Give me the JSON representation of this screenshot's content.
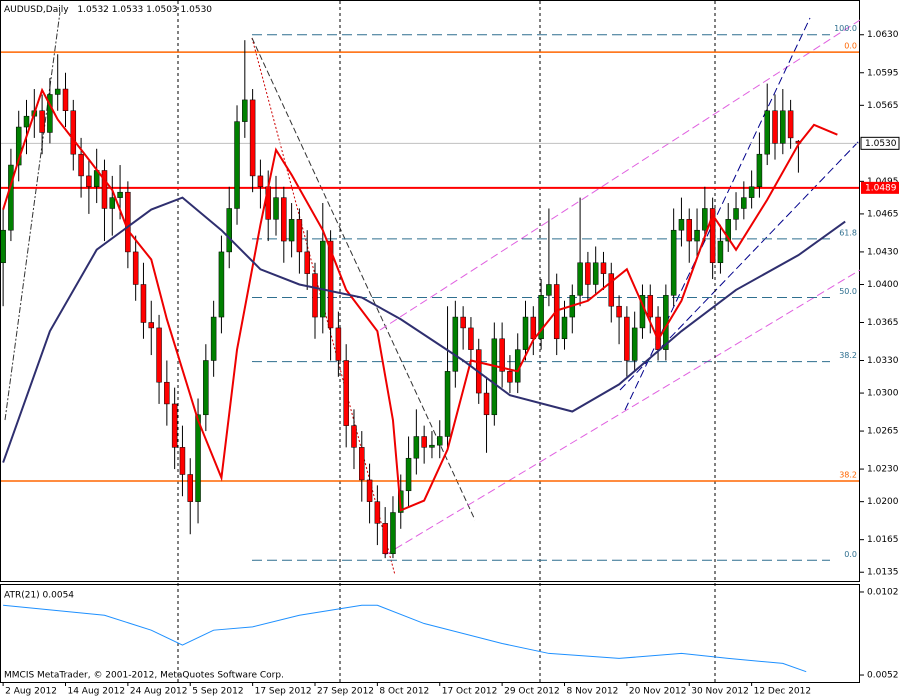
{
  "chart_data": [
    {
      "type": "candlestick",
      "title": "AUDUSD,Daily",
      "quote": [
        "1.0532",
        "1.0533",
        "1.0503",
        "1.0530"
      ],
      "xlim": [
        -0.4,
        109.9
      ],
      "ylim": [
        1.0126,
        1.0662
      ],
      "xticks": [
        {
          "value": 0,
          "label": "2 Aug 2012"
        },
        {
          "value": 8,
          "label": "14 Aug 2012"
        },
        {
          "value": 16,
          "label": "24 Aug 2012"
        },
        {
          "value": 24,
          "label": "5 Sep 2012"
        },
        {
          "value": 32,
          "label": "17 Sep 2012"
        },
        {
          "value": 40,
          "label": "27 Sep 2012"
        },
        {
          "value": 48,
          "label": "8 Oct 2012"
        },
        {
          "value": 56,
          "label": "17 Oct 2012"
        },
        {
          "value": 64,
          "label": "29 Oct 2012"
        },
        {
          "value": 72,
          "label": "8 Nov 2012"
        },
        {
          "value": 80,
          "label": "20 Nov 2012"
        },
        {
          "value": 88,
          "label": "30 Nov 2012"
        },
        {
          "value": 96,
          "label": "12 Dec 2012"
        }
      ],
      "yticks": [
        {
          "value": 1.063,
          "label": "1.0630"
        },
        {
          "value": 1.0595,
          "label": "1.0595"
        },
        {
          "value": 1.0565,
          "label": "1.0565"
        },
        {
          "value": 1.0495,
          "label": "1.0495"
        },
        {
          "value": 1.0465,
          "label": "1.0465"
        },
        {
          "value": 1.043,
          "label": "1.0430"
        },
        {
          "value": 1.04,
          "label": "1.0400"
        },
        {
          "value": 1.0365,
          "label": "1.0365"
        },
        {
          "value": 1.033,
          "label": "1.0330"
        },
        {
          "value": 1.03,
          "label": "1.0300"
        },
        {
          "value": 1.0265,
          "label": "1.0265"
        },
        {
          "value": 1.023,
          "label": "1.0230"
        },
        {
          "value": 1.02,
          "label": "1.0200"
        },
        {
          "value": 1.0165,
          "label": "1.0165"
        },
        {
          "value": 1.0135,
          "label": "1.0135"
        }
      ],
      "price_line": {
        "value": 1.053,
        "label": "1.0530"
      },
      "support_line": {
        "value": 1.0489,
        "label": "1.0489",
        "color": "#ff0000"
      },
      "levels": [
        {
          "value": 1.063,
          "label": "100.0",
          "style": "fib"
        },
        {
          "value": 1.0614,
          "label": "0.0",
          "style": "orange"
        },
        {
          "value": 1.0442,
          "label": "61.8",
          "style": "fib"
        },
        {
          "value": 1.0388,
          "label": "50.0",
          "style": "fib"
        },
        {
          "value": 1.0329,
          "label": "38.2",
          "style": "fib"
        },
        {
          "value": 1.0219,
          "label": "38.2",
          "style": "orange"
        },
        {
          "value": 1.0146,
          "label": "0.0",
          "style": "fib"
        }
      ],
      "up_color": "#008000",
      "down_color": "#ff0000",
      "candles": [
        [
          1.042,
          1.047,
          1.038,
          1.045
        ],
        [
          1.045,
          1.0525,
          1.044,
          1.051
        ],
        [
          1.051,
          1.056,
          1.0495,
          1.0545
        ],
        [
          1.0545,
          1.057,
          1.052,
          1.0555
        ],
        [
          1.0555,
          1.058,
          1.0535,
          1.056
        ],
        [
          1.056,
          1.0575,
          1.052,
          1.054
        ],
        [
          1.054,
          1.059,
          1.053,
          1.0575
        ],
        [
          1.0575,
          1.0612,
          1.056,
          1.058
        ],
        [
          1.058,
          1.0595,
          1.0545,
          1.056
        ],
        [
          1.056,
          1.057,
          1.0505,
          1.052
        ],
        [
          1.052,
          1.0535,
          1.048,
          1.05
        ],
        [
          1.05,
          1.0515,
          1.0465,
          1.049
        ],
        [
          1.049,
          1.0525,
          1.0475,
          1.0505
        ],
        [
          1.0505,
          1.0515,
          1.044,
          1.047
        ],
        [
          1.047,
          1.05,
          1.0445,
          1.048
        ],
        [
          1.048,
          1.051,
          1.046,
          1.0485
        ],
        [
          1.0485,
          1.0495,
          1.0415,
          1.043
        ],
        [
          1.043,
          1.0445,
          1.0385,
          1.04
        ],
        [
          1.04,
          1.042,
          1.035,
          1.0365
        ],
        [
          1.0365,
          1.0385,
          1.0335,
          1.036
        ],
        [
          1.036,
          1.0372,
          1.029,
          1.031
        ],
        [
          1.031,
          1.033,
          1.027,
          1.029
        ],
        [
          1.029,
          1.0305,
          1.023,
          1.025
        ],
        [
          1.025,
          1.027,
          1.0205,
          1.0225
        ],
        [
          1.0225,
          1.024,
          1.017,
          1.02
        ],
        [
          1.02,
          1.0295,
          1.018,
          1.028
        ],
        [
          1.028,
          1.0345,
          1.0265,
          1.033
        ],
        [
          1.033,
          1.0385,
          1.0315,
          1.037
        ],
        [
          1.037,
          1.0445,
          1.0355,
          1.043
        ],
        [
          1.043,
          1.049,
          1.0415,
          1.047
        ],
        [
          1.047,
          1.0565,
          1.0455,
          1.055
        ],
        [
          1.055,
          1.0625,
          1.0535,
          1.057
        ],
        [
          1.057,
          1.058,
          1.0485,
          1.05
        ],
        [
          1.05,
          1.0515,
          1.047,
          1.049
        ],
        [
          1.049,
          1.0505,
          1.044,
          1.046
        ],
        [
          1.046,
          1.05,
          1.0445,
          1.048
        ],
        [
          1.048,
          1.049,
          1.042,
          1.044
        ],
        [
          1.044,
          1.0475,
          1.0425,
          1.046
        ],
        [
          1.046,
          1.047,
          1.041,
          1.043
        ],
        [
          1.043,
          1.045,
          1.0395,
          1.041
        ],
        [
          1.041,
          1.042,
          1.035,
          1.037
        ],
        [
          1.037,
          1.0475,
          1.0355,
          1.044
        ],
        [
          1.044,
          1.045,
          1.033,
          1.036
        ],
        [
          1.036,
          1.0375,
          1.0315,
          1.033
        ],
        [
          1.033,
          1.0345,
          1.025,
          1.027
        ],
        [
          1.027,
          1.0285,
          1.023,
          1.025
        ],
        [
          1.025,
          1.0265,
          1.02,
          1.022
        ],
        [
          1.022,
          1.0235,
          1.018,
          1.02
        ],
        [
          1.02,
          1.0215,
          1.016,
          1.018
        ],
        [
          1.018,
          1.0195,
          1.0148,
          1.0152
        ],
        [
          1.0152,
          1.0205,
          1.0148,
          1.019
        ],
        [
          1.019,
          1.0225,
          1.0175,
          1.021
        ],
        [
          1.021,
          1.026,
          1.0195,
          1.024
        ],
        [
          1.024,
          1.0285,
          1.0225,
          1.026
        ],
        [
          1.026,
          1.027,
          1.0235,
          1.025
        ],
        [
          1.025,
          1.0265,
          1.024,
          1.0252
        ],
        [
          1.0252,
          1.0275,
          1.024,
          1.026
        ],
        [
          1.026,
          1.038,
          1.025,
          1.032
        ],
        [
          1.032,
          1.0385,
          1.0305,
          1.037
        ],
        [
          1.037,
          1.038,
          1.034,
          1.036
        ],
        [
          1.036,
          1.037,
          1.0325,
          1.034
        ],
        [
          1.034,
          1.035,
          1.029,
          1.03
        ],
        [
          1.03,
          1.0315,
          1.0245,
          1.028
        ],
        [
          1.028,
          1.0365,
          1.027,
          1.035
        ],
        [
          1.035,
          1.0365,
          1.0305,
          1.032
        ],
        [
          1.032,
          1.0335,
          1.03,
          1.031
        ],
        [
          1.031,
          1.0355,
          1.03,
          1.034
        ],
        [
          1.034,
          1.0385,
          1.033,
          1.037
        ],
        [
          1.037,
          1.038,
          1.0335,
          1.035
        ],
        [
          1.035,
          1.0405,
          1.034,
          1.039
        ],
        [
          1.039,
          1.047,
          1.038,
          1.04
        ],
        [
          1.04,
          1.041,
          1.0335,
          1.035
        ],
        [
          1.035,
          1.0385,
          1.034,
          1.037
        ],
        [
          1.037,
          1.04,
          1.0355,
          1.039
        ],
        [
          1.039,
          1.048,
          1.038,
          1.042
        ],
        [
          1.042,
          1.043,
          1.0385,
          1.04
        ],
        [
          1.04,
          1.0435,
          1.039,
          1.042
        ],
        [
          1.042,
          1.043,
          1.0395,
          1.041
        ],
        [
          1.041,
          1.042,
          1.0365,
          1.038
        ],
        [
          1.038,
          1.039,
          1.0345,
          1.037
        ],
        [
          1.037,
          1.038,
          1.0315,
          1.033
        ],
        [
          1.033,
          1.0375,
          1.032,
          1.036
        ],
        [
          1.036,
          1.04,
          1.035,
          1.039
        ],
        [
          1.039,
          1.04,
          1.0355,
          1.037
        ],
        [
          1.037,
          1.038,
          1.033,
          1.034
        ],
        [
          1.034,
          1.04,
          1.033,
          1.039
        ],
        [
          1.039,
          1.047,
          1.038,
          1.045
        ],
        [
          1.045,
          1.048,
          1.0435,
          1.046
        ],
        [
          1.046,
          1.047,
          1.042,
          1.044
        ],
        [
          1.044,
          1.047,
          1.0425,
          1.045
        ],
        [
          1.045,
          1.049,
          1.044,
          1.047
        ],
        [
          1.047,
          1.048,
          1.0405,
          1.042
        ],
        [
          1.042,
          1.0455,
          1.041,
          1.044
        ],
        [
          1.044,
          1.0475,
          1.043,
          1.046
        ],
        [
          1.046,
          1.0485,
          1.045,
          1.047
        ],
        [
          1.047,
          1.0495,
          1.046,
          1.048
        ],
        [
          1.048,
          1.0505,
          1.047,
          1.049
        ],
        [
          1.049,
          1.054,
          1.048,
          1.052
        ],
        [
          1.052,
          1.0585,
          1.051,
          1.056
        ],
        [
          1.056,
          1.0575,
          1.0515,
          1.053
        ],
        [
          1.053,
          1.058,
          1.052,
          1.056
        ],
        [
          1.056,
          1.057,
          1.0525,
          1.0535
        ],
        [
          1.0532,
          1.0533,
          1.0503,
          1.053
        ]
      ],
      "series": [
        {
          "color": "#ee0000",
          "x": [
            0,
            2,
            5,
            7,
            11,
            14,
            16,
            19,
            21,
            25,
            28,
            30,
            33,
            35,
            37,
            41,
            44,
            48,
            50,
            51,
            54,
            57,
            60,
            66,
            68,
            71,
            75,
            80,
            84,
            87,
            91,
            94,
            98,
            102,
            104,
            107
          ],
          "values": [
            1.0469,
            1.0515,
            1.0579,
            1.0552,
            1.0515,
            1.0487,
            1.045,
            1.0423,
            1.0368,
            1.0275,
            1.0222,
            1.034,
            1.0455,
            1.0524,
            1.0501,
            1.045,
            1.0395,
            1.0357,
            1.0275,
            1.0192,
            1.0201,
            1.0248,
            1.033,
            1.032,
            1.0349,
            1.0376,
            1.0385,
            1.0414,
            1.0349,
            1.0385,
            1.0464,
            1.0432,
            1.0478,
            1.0529,
            1.0547,
            1.0538
          ]
        },
        {
          "color": "#2f2f6f",
          "x": [
            0,
            6,
            12,
            19,
            23,
            28,
            33,
            38,
            46,
            51,
            59,
            65,
            73,
            79,
            87,
            94,
            102,
            108
          ],
          "values": [
            1.0236,
            1.0357,
            1.0432,
            1.0469,
            1.048,
            1.045,
            1.0414,
            1.04,
            1.0388,
            1.0368,
            1.033,
            1.0298,
            1.0283,
            1.0308,
            1.0357,
            1.0395,
            1.0427,
            1.0458
          ]
        }
      ]
    },
    {
      "type": "line",
      "title": "ATR(21) 0.0054",
      "ylim": [
        0.00478,
        0.01062
      ],
      "yticks": [
        {
          "value": 0.0102,
          "label": "0.0102"
        },
        {
          "value": 0.0052,
          "label": "0.0052"
        }
      ],
      "color": "#1e90ff",
      "x": [
        0,
        13,
        19,
        23,
        27,
        32,
        38,
        46,
        48,
        54,
        64,
        70,
        79,
        87,
        93,
        100,
        103
      ],
      "values": [
        0.0094,
        0.0088,
        0.0079,
        0.007,
        0.0079,
        0.0081,
        0.0088,
        0.0094,
        0.0094,
        0.0083,
        0.0071,
        0.0065,
        0.0062,
        0.0065,
        0.0062,
        0.0059,
        0.0054
      ]
    }
  ],
  "footer": "MMCIS MetaTrader, © 2001-2012, MetaQuotes Software Corp."
}
